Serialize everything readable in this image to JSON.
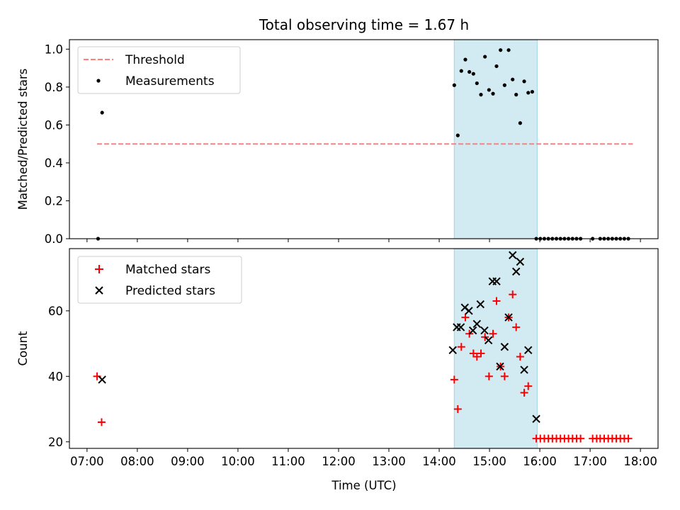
{
  "figure": {
    "title": "Total observing time = 1.67 h",
    "xlabel": "Time (UTC)",
    "xticks": [
      {
        "h": 7,
        "label": "07:00"
      },
      {
        "h": 8,
        "label": "08:00"
      },
      {
        "h": 9,
        "label": "09:00"
      },
      {
        "h": 10,
        "label": "10:00"
      },
      {
        "h": 11,
        "label": "11:00"
      },
      {
        "h": 12,
        "label": "12:00"
      },
      {
        "h": 13,
        "label": "13:00"
      },
      {
        "h": 14,
        "label": "14:00"
      },
      {
        "h": 15,
        "label": "15:00"
      },
      {
        "h": 16,
        "label": "16:00"
      },
      {
        "h": 17,
        "label": "17:00"
      },
      {
        "h": 18,
        "label": "18:00"
      }
    ],
    "xlim": [
      6.65,
      18.35
    ],
    "shade": {
      "from": 14.3,
      "to": 15.95,
      "color": "#add8e6"
    },
    "colors": {
      "threshold": "#ff7f7f",
      "measurements": "#000000",
      "matched": "#ff0000",
      "predicted": "#000000"
    }
  },
  "chart_data": [
    {
      "type": "scatter",
      "title": "Total observing time = 1.67 h",
      "ylabel": "Matched/Predicted stars",
      "ylim": [
        0,
        1.05
      ],
      "yticks": [
        {
          "v": 0.0,
          "label": "0.0"
        },
        {
          "v": 0.2,
          "label": "0.2"
        },
        {
          "v": 0.4,
          "label": "0.4"
        },
        {
          "v": 0.6,
          "label": "0.6"
        },
        {
          "v": 0.8,
          "label": "0.8"
        },
        {
          "v": 1.0,
          "label": "1.0"
        }
      ],
      "legend": {
        "position": "upper-left",
        "threshold_label": "Threshold",
        "measurements_label": "Measurements"
      },
      "threshold": {
        "name": "Threshold",
        "value": 0.5,
        "x_range": [
          7.2,
          17.85
        ]
      },
      "series": [
        {
          "name": "Measurements",
          "points": [
            [
              7.22,
              0.0
            ],
            [
              7.3,
              0.665
            ],
            [
              14.3,
              0.81
            ],
            [
              14.37,
              0.545
            ],
            [
              14.44,
              0.885
            ],
            [
              14.52,
              0.945
            ],
            [
              14.6,
              0.88
            ],
            [
              14.68,
              0.87
            ],
            [
              14.75,
              0.82
            ],
            [
              14.83,
              0.76
            ],
            [
              14.91,
              0.96
            ],
            [
              14.99,
              0.785
            ],
            [
              15.07,
              0.765
            ],
            [
              15.14,
              0.91
            ],
            [
              15.22,
              0.995
            ],
            [
              15.3,
              0.81
            ],
            [
              15.38,
              0.995
            ],
            [
              15.46,
              0.84
            ],
            [
              15.53,
              0.76
            ],
            [
              15.61,
              0.61
            ],
            [
              15.69,
              0.83
            ],
            [
              15.77,
              0.77
            ],
            [
              15.85,
              0.775
            ],
            [
              15.93,
              0.0
            ],
            [
              16.01,
              0.0
            ],
            [
              16.09,
              0.0
            ],
            [
              16.17,
              0.0
            ],
            [
              16.25,
              0.0
            ],
            [
              16.33,
              0.0
            ],
            [
              16.41,
              0.0
            ],
            [
              16.49,
              0.0
            ],
            [
              16.57,
              0.0
            ],
            [
              16.65,
              0.0
            ],
            [
              16.73,
              0.0
            ],
            [
              16.81,
              0.0
            ],
            [
              17.05,
              0.0
            ],
            [
              17.2,
              0.0
            ],
            [
              17.28,
              0.0
            ],
            [
              17.36,
              0.0
            ],
            [
              17.44,
              0.0
            ],
            [
              17.52,
              0.0
            ],
            [
              17.6,
              0.0
            ],
            [
              17.68,
              0.0
            ],
            [
              17.76,
              0.0
            ]
          ]
        }
      ]
    },
    {
      "type": "scatter",
      "ylabel": "Count",
      "ylim": [
        18,
        79
      ],
      "yticks": [
        {
          "v": 20,
          "label": "20"
        },
        {
          "v": 40,
          "label": "40"
        },
        {
          "v": 60,
          "label": "60"
        }
      ],
      "legend": {
        "position": "upper-left",
        "matched_label": "Matched stars",
        "predicted_label": "Predicted stars"
      },
      "series": [
        {
          "name": "Matched stars",
          "points": [
            [
              7.2,
              40
            ],
            [
              7.29,
              26
            ],
            [
              14.3,
              39
            ],
            [
              14.37,
              30
            ],
            [
              14.44,
              49
            ],
            [
              14.52,
              58
            ],
            [
              14.6,
              53
            ],
            [
              14.68,
              47
            ],
            [
              14.75,
              46
            ],
            [
              14.83,
              47
            ],
            [
              14.91,
              52
            ],
            [
              14.99,
              40
            ],
            [
              15.07,
              53
            ],
            [
              15.14,
              63
            ],
            [
              15.22,
              43
            ],
            [
              15.3,
              40
            ],
            [
              15.38,
              58
            ],
            [
              15.46,
              65
            ],
            [
              15.53,
              55
            ],
            [
              15.61,
              46
            ],
            [
              15.69,
              35
            ],
            [
              15.77,
              37
            ],
            [
              15.93,
              21
            ],
            [
              16.01,
              21
            ],
            [
              16.09,
              21
            ],
            [
              16.17,
              21
            ],
            [
              16.25,
              21
            ],
            [
              16.33,
              21
            ],
            [
              16.41,
              21
            ],
            [
              16.49,
              21
            ],
            [
              16.57,
              21
            ],
            [
              16.65,
              21
            ],
            [
              16.73,
              21
            ],
            [
              16.81,
              21
            ],
            [
              17.05,
              21
            ],
            [
              17.13,
              21
            ],
            [
              17.2,
              21
            ],
            [
              17.28,
              21
            ],
            [
              17.36,
              21
            ],
            [
              17.44,
              21
            ],
            [
              17.52,
              21
            ],
            [
              17.6,
              21
            ],
            [
              17.68,
              21
            ],
            [
              17.76,
              21
            ]
          ]
        },
        {
          "name": "Predicted stars",
          "points": [
            [
              7.3,
              39
            ],
            [
              14.27,
              48
            ],
            [
              14.35,
              55
            ],
            [
              14.43,
              55
            ],
            [
              14.51,
              61
            ],
            [
              14.59,
              60
            ],
            [
              14.67,
              54
            ],
            [
              14.75,
              56
            ],
            [
              14.82,
              62
            ],
            [
              14.9,
              54
            ],
            [
              14.98,
              51
            ],
            [
              15.06,
              69
            ],
            [
              15.14,
              69
            ],
            [
              15.21,
              43
            ],
            [
              15.3,
              49
            ],
            [
              15.38,
              58
            ],
            [
              15.46,
              77
            ],
            [
              15.53,
              72
            ],
            [
              15.61,
              75
            ],
            [
              15.69,
              42
            ],
            [
              15.77,
              48
            ],
            [
              15.93,
              27
            ]
          ]
        }
      ]
    }
  ]
}
